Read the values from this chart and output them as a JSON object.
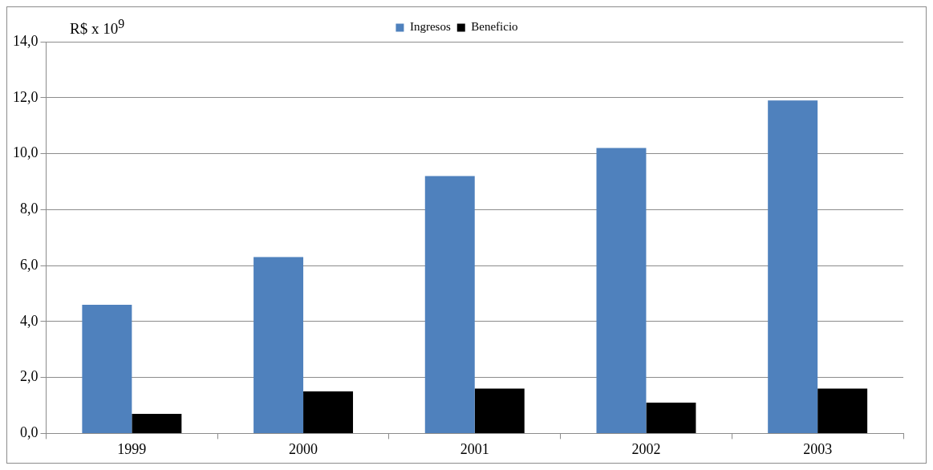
{
  "chart_data": {
    "type": "bar",
    "ylabel": "R$ x 10$^{9}$",
    "categories": [
      "1999",
      "2000",
      "2001",
      "2002",
      "2003"
    ],
    "series": [
      {
        "name": "Ingresos",
        "color": "#4f81bd",
        "values": [
          4.6,
          6.3,
          9.2,
          10.2,
          11.9
        ]
      },
      {
        "name": "Beneficio",
        "color": "#000000",
        "values": [
          0.7,
          1.5,
          1.6,
          1.1,
          1.6
        ]
      }
    ],
    "ylim": [
      0,
      14
    ],
    "yticks": [
      {
        "value": 0,
        "label": "0,0"
      },
      {
        "value": 2,
        "label": "2,0"
      },
      {
        "value": 4,
        "label": "4,0"
      },
      {
        "value": 6,
        "label": "6,0"
      },
      {
        "value": 8,
        "label": "8,0"
      },
      {
        "value": 10,
        "label": "10,0"
      },
      {
        "value": 12,
        "label": "12,0"
      },
      {
        "value": 14,
        "label": "14,0"
      }
    ],
    "grid": "y",
    "legend": "top"
  }
}
